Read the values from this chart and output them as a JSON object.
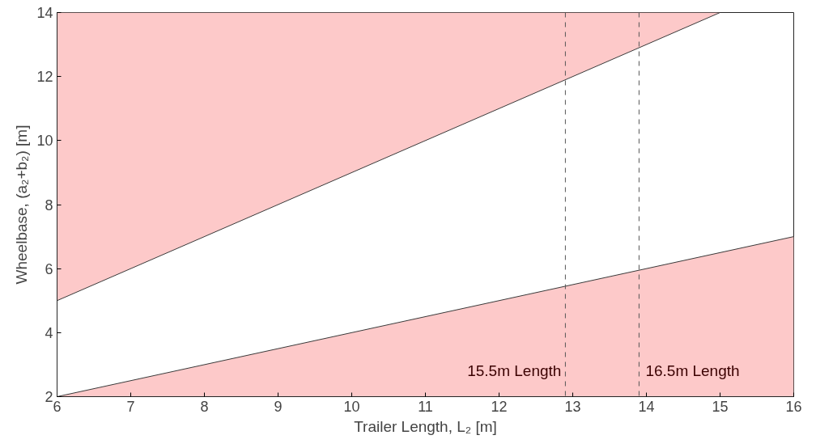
{
  "chart_data": {
    "type": "line",
    "xlabel": "Trailer Length, L₂ [m]",
    "ylabel": "Wheelbase, (a₂+b₂) [m]",
    "xlim": [
      6,
      16
    ],
    "ylim": [
      2,
      14
    ],
    "xticks": [
      6,
      7,
      8,
      9,
      10,
      11,
      12,
      13,
      14,
      15,
      16
    ],
    "yticks": [
      2,
      4,
      6,
      8,
      10,
      12,
      14
    ],
    "grid": false,
    "marker": "none",
    "line_style": "solid",
    "series": [
      {
        "color": "#3a3a3a",
        "x": [
          6,
          15
        ],
        "values": [
          5,
          14
        ],
        "lower": [
          5,
          14
        ],
        "upper": [
          14,
          14
        ]
      },
      {
        "color": "#3a3a3a",
        "x": [
          6,
          16
        ],
        "values": [
          2,
          7
        ],
        "lower": [
          2,
          2
        ],
        "upper": [
          2,
          7
        ]
      }
    ],
    "ref_lines": [
      {
        "axis": "x",
        "value": 12.9,
        "label": "15.5m Length",
        "color": "#555555",
        "line_style": "dashed"
      },
      {
        "axis": "x",
        "value": 13.9,
        "label": "16.5m Length",
        "color": "#555555",
        "line_style": "dashed"
      }
    ]
  }
}
